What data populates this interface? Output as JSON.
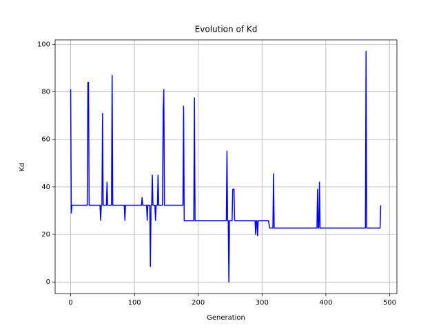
{
  "chart_data": {
    "type": "line",
    "title": "Evolution of Kd",
    "x_label": "Generation",
    "y_label": "Kd",
    "x": [
      0,
      1,
      2,
      26,
      27,
      28,
      29,
      46,
      47,
      48,
      49,
      50,
      51,
      56,
      57,
      58,
      64,
      65,
      66,
      84,
      85,
      86,
      111,
      112,
      113,
      119,
      120,
      121,
      124,
      125,
      126,
      127,
      128,
      129,
      132,
      133,
      134,
      136,
      137,
      138,
      144,
      145,
      146,
      147,
      176,
      177,
      178,
      193,
      194,
      195,
      244,
      245,
      246,
      247,
      248,
      249,
      253,
      254,
      256,
      257,
      258,
      289,
      290,
      291,
      292,
      293,
      294,
      310,
      312,
      317,
      318,
      319,
      386,
      387,
      388,
      389,
      390,
      391,
      462,
      463,
      464,
      485,
      486
    ],
    "series": [
      {
        "name": "Kd",
        "color": "#0000ff",
        "values": [
          81,
          29,
          32.3,
          32.3,
          84,
          84,
          32.3,
          32.3,
          26,
          32.3,
          32.3,
          71,
          32.3,
          32.3,
          42,
          32.3,
          32.3,
          87,
          32.3,
          32.3,
          26,
          32.3,
          32.3,
          35.5,
          32.3,
          32.3,
          26,
          32.3,
          32.3,
          6.5,
          32.3,
          32.3,
          45,
          32.3,
          32.3,
          26,
          32.3,
          32.3,
          45,
          32.3,
          32.3,
          72,
          81,
          32.3,
          32.3,
          74,
          25.8,
          25.8,
          77.5,
          25.8,
          25.8,
          55,
          25.8,
          25.8,
          0,
          25.8,
          25.8,
          39,
          39,
          26,
          25.8,
          25.8,
          20,
          25.8,
          25.8,
          19.5,
          25.8,
          25.8,
          22.7,
          22.7,
          45.5,
          22.7,
          22.7,
          39,
          22.7,
          22.7,
          42,
          22.7,
          22.7,
          97,
          22.7,
          22.7,
          32.3
        ]
      }
    ],
    "xlim": [
      -24.35,
      511.35
    ],
    "ylim": [
      -4.85,
      101.85
    ],
    "xticks": [
      0,
      100,
      200,
      300,
      400,
      500
    ],
    "yticks": [
      0,
      20,
      40,
      60,
      80,
      100
    ],
    "grid": true
  }
}
